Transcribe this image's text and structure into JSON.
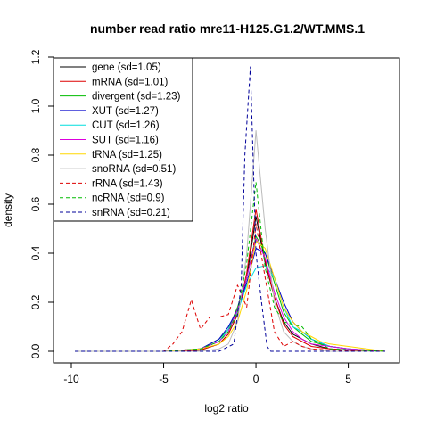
{
  "chart_data": {
    "type": "line",
    "title": "number read ratio mre11-H125.G1.2/WT.MMS.1",
    "xlabel": "log2 ratio",
    "ylabel": "density",
    "xlim": [
      -10,
      7
    ],
    "ylim": [
      0,
      1.2
    ],
    "x_ticks": [
      -10,
      -5,
      0,
      5
    ],
    "y_ticks": [
      0.0,
      0.2,
      0.4,
      0.6,
      0.8,
      1.0,
      1.2
    ],
    "grid": false,
    "legend_position": "top-left",
    "series": [
      {
        "name": "gene (sd=1.05)",
        "color": "#000000",
        "dash": "solid",
        "x": [
          -9.8,
          -5,
          -3,
          -2,
          -1.5,
          -1,
          -0.5,
          0,
          0.5,
          1,
          1.5,
          2,
          2.5,
          3,
          4,
          5,
          6,
          7
        ],
        "y": [
          0,
          0,
          0.005,
          0.03,
          0.07,
          0.15,
          0.3,
          0.55,
          0.36,
          0.22,
          0.12,
          0.07,
          0.05,
          0.03,
          0.01,
          0.005,
          0.003,
          0
        ]
      },
      {
        "name": "mRNA (sd=1.01)",
        "color": "#dd0000",
        "dash": "solid",
        "x": [
          -9.8,
          -5,
          -3,
          -2,
          -1.5,
          -1,
          -0.5,
          0,
          0.5,
          1,
          1.5,
          2,
          2.5,
          3,
          4,
          5,
          6,
          7
        ],
        "y": [
          0,
          0,
          0.005,
          0.03,
          0.07,
          0.15,
          0.32,
          0.58,
          0.37,
          0.22,
          0.11,
          0.06,
          0.04,
          0.02,
          0.01,
          0.005,
          0.002,
          0
        ]
      },
      {
        "name": "divergent (sd=1.23)",
        "color": "#00bb00",
        "dash": "solid",
        "x": [
          -9.8,
          -5,
          -3,
          -2,
          -1.5,
          -1,
          -0.5,
          0,
          0.5,
          1,
          1.5,
          2,
          2.5,
          3,
          4,
          5,
          6,
          7
        ],
        "y": [
          0,
          0,
          0.01,
          0.05,
          0.09,
          0.18,
          0.3,
          0.47,
          0.4,
          0.28,
          0.16,
          0.1,
          0.07,
          0.04,
          0.02,
          0.01,
          0.005,
          0
        ]
      },
      {
        "name": "XUT (sd=1.27)",
        "color": "#0000cc",
        "dash": "solid",
        "x": [
          -9.8,
          -5,
          -3,
          -2,
          -1.5,
          -1,
          -0.5,
          0,
          0.5,
          1,
          1.5,
          2,
          2.5,
          3,
          4,
          5,
          6,
          7
        ],
        "y": [
          0,
          0,
          0.01,
          0.05,
          0.1,
          0.17,
          0.28,
          0.42,
          0.4,
          0.3,
          0.2,
          0.12,
          0.08,
          0.05,
          0.02,
          0.01,
          0.005,
          0
        ]
      },
      {
        "name": "CUT (sd=1.26)",
        "color": "#00dddd",
        "dash": "solid",
        "x": [
          -9.8,
          -5,
          -3,
          -2,
          -1.5,
          -1,
          -0.5,
          0,
          0.5,
          1,
          1.5,
          2,
          2.5,
          3,
          4,
          5,
          6,
          7
        ],
        "y": [
          0,
          0,
          0.01,
          0.04,
          0.09,
          0.16,
          0.27,
          0.34,
          0.35,
          0.3,
          0.18,
          0.1,
          0.08,
          0.05,
          0.02,
          0.01,
          0.005,
          0
        ]
      },
      {
        "name": "SUT (sd=1.16)",
        "color": "#dd00dd",
        "dash": "solid",
        "x": [
          -9.8,
          -5,
          -3,
          -2,
          -1.5,
          -1,
          -0.5,
          0,
          0.5,
          1,
          1.5,
          2,
          2.5,
          3,
          4,
          5,
          6,
          7
        ],
        "y": [
          0,
          0,
          0.01,
          0.04,
          0.08,
          0.17,
          0.3,
          0.46,
          0.38,
          0.24,
          0.14,
          0.08,
          0.05,
          0.03,
          0.02,
          0.01,
          0.005,
          0
        ]
      },
      {
        "name": "tRNA (sd=1.25)",
        "color": "#ffd700",
        "dash": "solid",
        "x": [
          -9.8,
          -5,
          -3,
          -2,
          -1.5,
          -1,
          -0.5,
          0,
          0.5,
          1,
          1.5,
          2,
          2.5,
          3,
          3.5,
          4,
          5,
          6,
          7
        ],
        "y": [
          0,
          0,
          0.01,
          0.03,
          0.06,
          0.12,
          0.25,
          0.45,
          0.42,
          0.3,
          0.18,
          0.12,
          0.08,
          0.06,
          0.04,
          0.03,
          0.02,
          0.01,
          0
        ]
      },
      {
        "name": "snoRNA (sd=0.51)",
        "color": "#bbbbbb",
        "dash": "solid",
        "x": [
          -9.8,
          -5,
          -3,
          -2,
          -1.5,
          -1,
          -0.5,
          0,
          0.5,
          1,
          1.5,
          2,
          2.5,
          3,
          4,
          7
        ],
        "y": [
          0,
          0,
          0,
          0.01,
          0.03,
          0.12,
          0.4,
          0.9,
          0.5,
          0.2,
          0.08,
          0.04,
          0.02,
          0.01,
          0,
          0
        ]
      },
      {
        "name": "rRNA (sd=1.43)",
        "color": "#dd0000",
        "dash": "dashed",
        "x": [
          -9.8,
          -5,
          -4.5,
          -4,
          -3.5,
          -3,
          -2.5,
          -2,
          -1.5,
          -1,
          -0.5,
          0,
          0.5,
          1,
          1.5,
          2,
          2.5,
          3,
          4,
          5,
          6,
          7
        ],
        "y": [
          0,
          0,
          0.03,
          0.08,
          0.21,
          0.09,
          0.14,
          0.14,
          0.15,
          0.27,
          0.18,
          0.52,
          0.3,
          0.08,
          0.02,
          0.04,
          0.02,
          0.01,
          0.005,
          0.003,
          0.002,
          0
        ]
      },
      {
        "name": "ncRNA (sd=0.9)",
        "color": "#00bb00",
        "dash": "dashed",
        "x": [
          -9.8,
          -5,
          -3,
          -2,
          -1.5,
          -1,
          -0.5,
          0,
          0.5,
          1,
          1.5,
          2,
          2.5,
          3,
          4,
          7
        ],
        "y": [
          0,
          0,
          0.01,
          0.04,
          0.08,
          0.16,
          0.36,
          0.69,
          0.34,
          0.18,
          0.12,
          0.11,
          0.1,
          0.05,
          0.01,
          0
        ]
      },
      {
        "name": "snRNA (sd=0.21)",
        "color": "#000099",
        "dash": "dashed",
        "x": [
          -9.8,
          -5,
          -2,
          -1.2,
          -0.8,
          -0.6,
          -0.3,
          0,
          0.3,
          0.6,
          0.8,
          1,
          7
        ],
        "y": [
          0,
          0,
          0,
          0.03,
          0.27,
          0.8,
          1.16,
          0.4,
          0.2,
          0.02,
          0,
          0,
          0
        ]
      }
    ]
  }
}
